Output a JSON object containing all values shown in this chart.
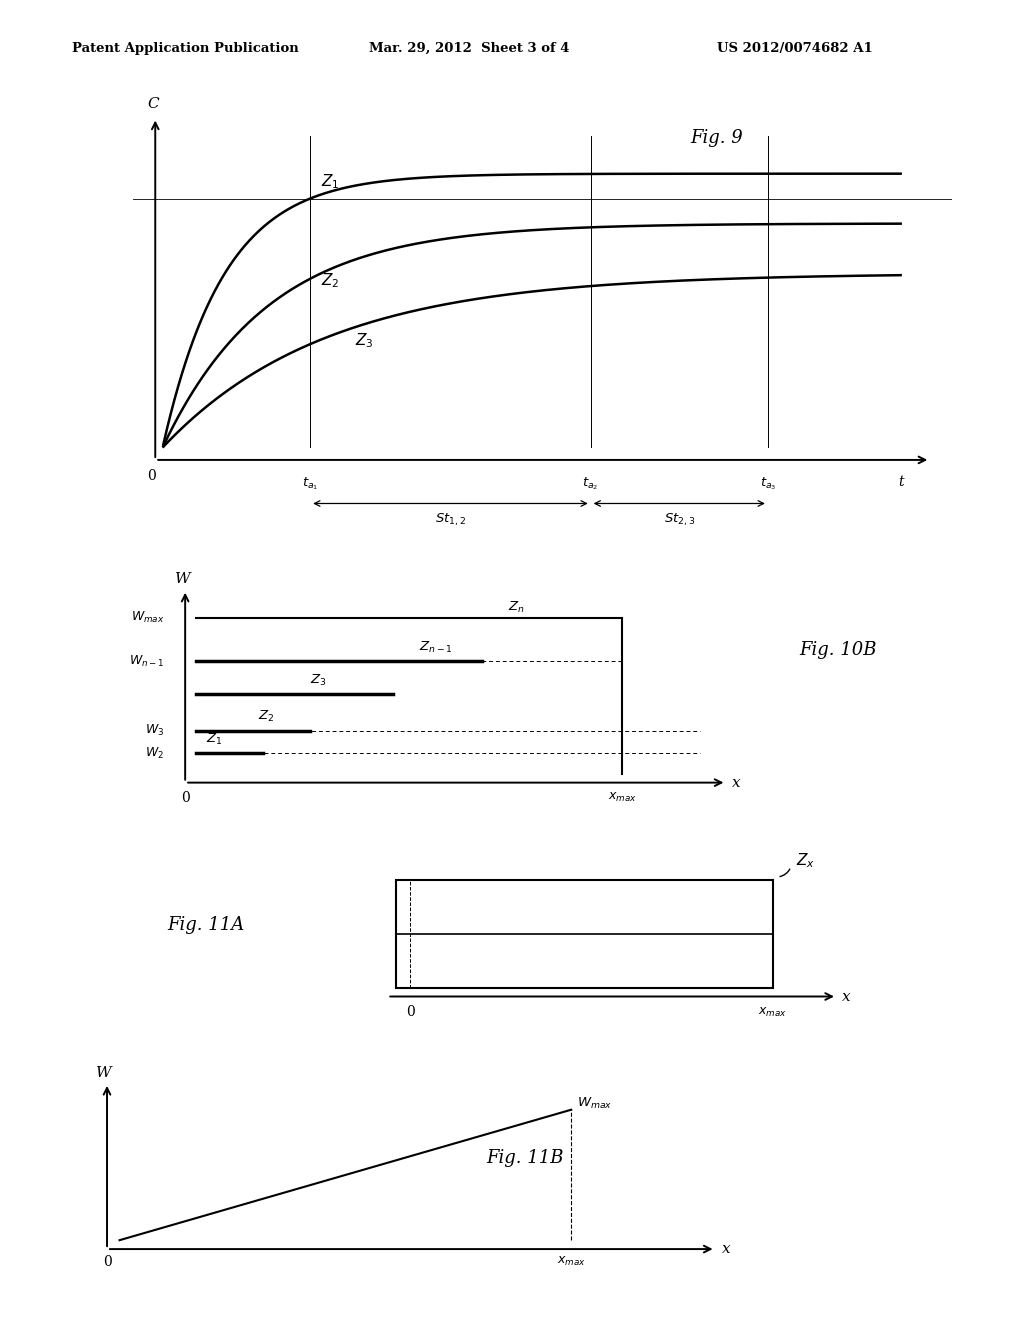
{
  "bg_color": "#ffffff",
  "header_left": "Patent Application Publication",
  "header_mid": "Mar. 29, 2012  Sheet 3 of 4",
  "header_right": "US 2012/0074682 A1",
  "fig9_label": "Fig. 9",
  "fig10b_label": "Fig. 10B",
  "fig11a_label": "Fig. 11A",
  "fig11b_label": "Fig. 11B",
  "ta1": 0.2,
  "ta2": 0.58,
  "ta3": 0.82,
  "A1": 0.88,
  "k1": 12.0,
  "A2": 0.72,
  "k2": 7.0,
  "A3": 0.56,
  "k3": 4.5
}
